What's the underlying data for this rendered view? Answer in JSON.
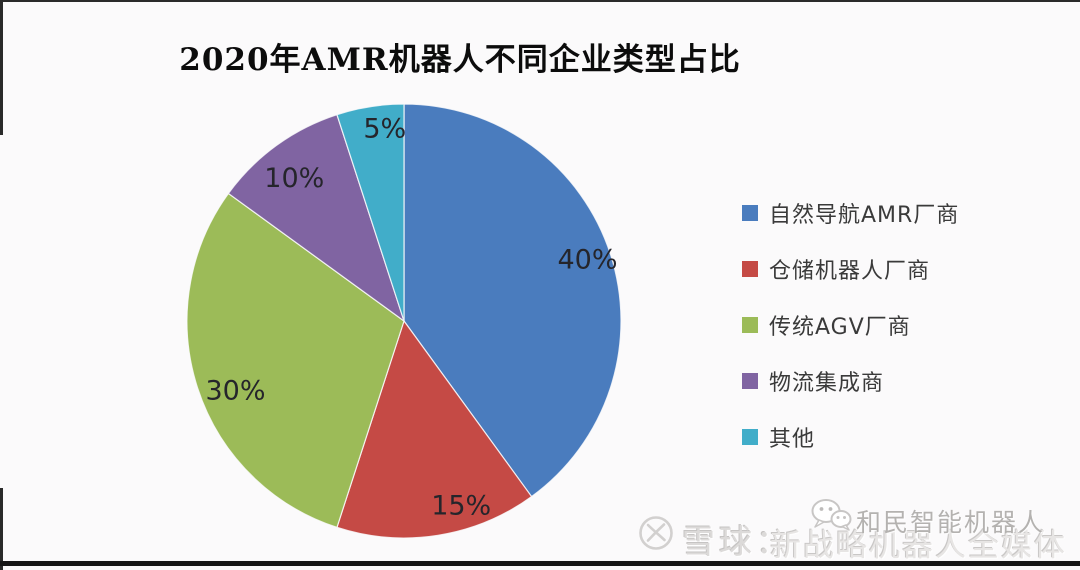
{
  "page": {
    "title": "2020年AMR机器人不同企业类型占比"
  },
  "chart_data": {
    "type": "pie",
    "title": "2020年AMR机器人不同企业类型占比",
    "categories": [
      "自然导航AMR厂商",
      "仓储机器人厂商",
      "传统AGV厂商",
      "物流集成商",
      "其他"
    ],
    "values": [
      40,
      15,
      30,
      10,
      5
    ],
    "labels": [
      "40%",
      "15%",
      "30%",
      "10%",
      "5%"
    ],
    "colors": [
      "#4A7CBE",
      "#C54A45",
      "#9CBB58",
      "#8064A2",
      "#41ADC9"
    ],
    "unit": "%",
    "start_angle_deg": 0,
    "direction": "clockwise",
    "legend_position": "right",
    "grid": "off"
  },
  "watermark": {
    "xueqiu_label": "雪球：",
    "media_text": "新战略机器人全媒体",
    "overlay_text": "和民智能机器人"
  }
}
